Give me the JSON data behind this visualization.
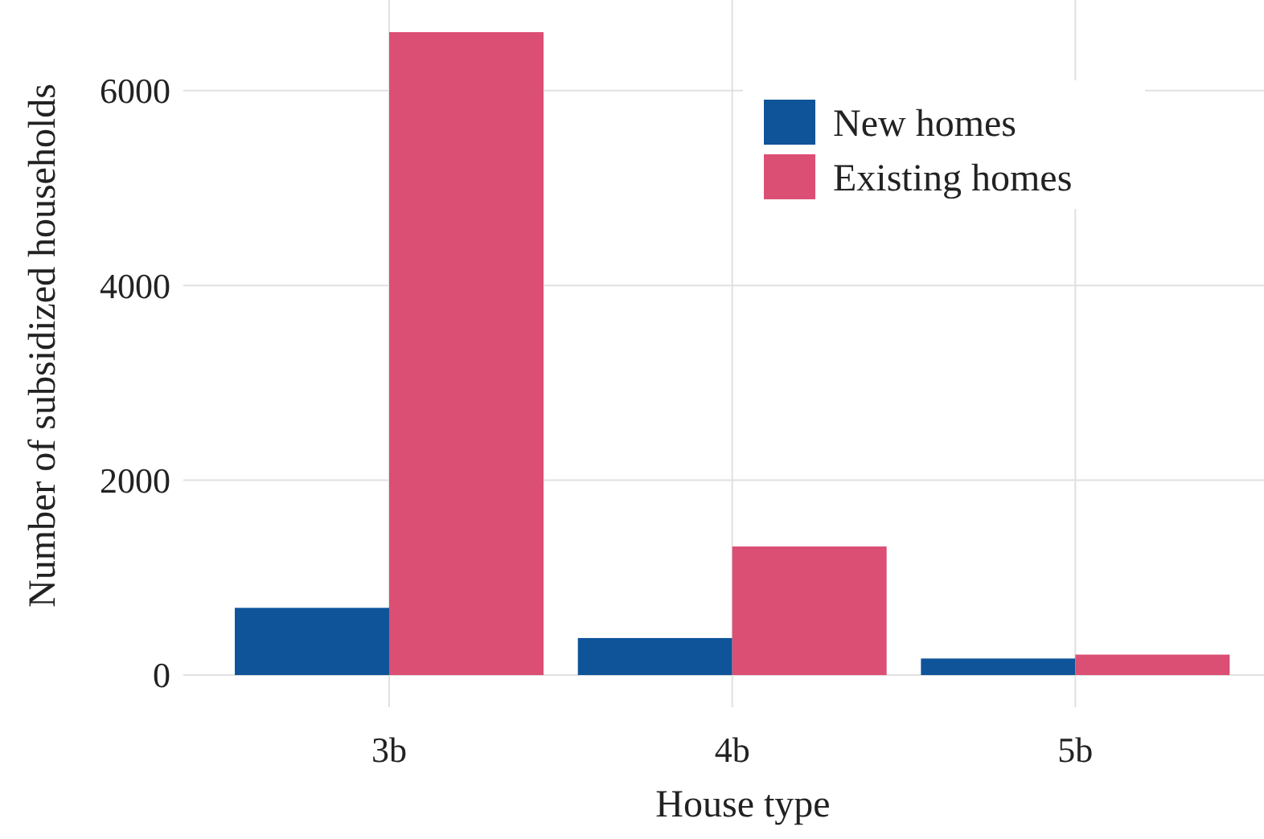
{
  "chart_data": {
    "type": "bar",
    "xlabel": "House type",
    "ylabel": "Number of subsidized households",
    "categories": [
      "3b",
      "4b",
      "5b"
    ],
    "series": [
      {
        "name": "New homes",
        "color": "#0f5499",
        "values": [
          690,
          380,
          170
        ]
      },
      {
        "name": "Existing homes",
        "color": "#db4f75",
        "values": [
          6600,
          1320,
          210
        ]
      }
    ],
    "ylim": [
      -330,
      6930
    ],
    "yticks": [
      0,
      2000,
      4000,
      6000
    ],
    "grid": true,
    "legend": "top right"
  }
}
